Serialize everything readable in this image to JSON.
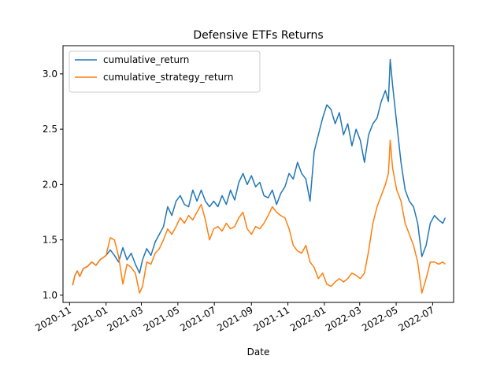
{
  "chart_data": {
    "type": "line",
    "title": "Defensive ETFs Returns",
    "xlabel": "Date",
    "ylabel": "",
    "x_range": [
      "2020-10-21",
      "2022-08-05"
    ],
    "ylim": [
      0.935,
      3.255
    ],
    "grid": false,
    "legend_position": "upper-left",
    "x_ticks": [
      {
        "date": "2020-11-01",
        "label": "2020-11"
      },
      {
        "date": "2021-01-01",
        "label": "2021-01"
      },
      {
        "date": "2021-03-01",
        "label": "2021-03"
      },
      {
        "date": "2021-05-01",
        "label": "2021-05"
      },
      {
        "date": "2021-07-01",
        "label": "2021-07"
      },
      {
        "date": "2021-09-01",
        "label": "2021-09"
      },
      {
        "date": "2021-11-01",
        "label": "2021-11"
      },
      {
        "date": "2022-01-01",
        "label": "2022-01"
      },
      {
        "date": "2022-03-01",
        "label": "2022-03"
      },
      {
        "date": "2022-05-01",
        "label": "2022-05"
      },
      {
        "date": "2022-07-01",
        "label": "2022-07"
      }
    ],
    "y_ticks": [
      {
        "value": 1.0,
        "label": "1.0"
      },
      {
        "value": 1.5,
        "label": "1.5"
      },
      {
        "value": 2.0,
        "label": "2.0"
      },
      {
        "value": 2.5,
        "label": "2.5"
      },
      {
        "value": 3.0,
        "label": "3.0"
      }
    ],
    "series": [
      {
        "name": "cumulative_return",
        "color": "#1f77b4",
        "points": [
          [
            "2020-11-06",
            1.09
          ],
          [
            "2020-11-10",
            1.18
          ],
          [
            "2020-11-14",
            1.22
          ],
          [
            "2020-11-18",
            1.17
          ],
          [
            "2020-11-24",
            1.24
          ],
          [
            "2020-12-01",
            1.26
          ],
          [
            "2020-12-08",
            1.3
          ],
          [
            "2020-12-15",
            1.27
          ],
          [
            "2020-12-22",
            1.32
          ],
          [
            "2021-01-01",
            1.36
          ],
          [
            "2021-01-08",
            1.41
          ],
          [
            "2021-01-15",
            1.36
          ],
          [
            "2021-01-22",
            1.3
          ],
          [
            "2021-01-29",
            1.43
          ],
          [
            "2021-02-05",
            1.32
          ],
          [
            "2021-02-12",
            1.38
          ],
          [
            "2021-02-19",
            1.28
          ],
          [
            "2021-02-26",
            1.2
          ],
          [
            "2021-03-03",
            1.32
          ],
          [
            "2021-03-10",
            1.42
          ],
          [
            "2021-03-17",
            1.36
          ],
          [
            "2021-03-24",
            1.48
          ],
          [
            "2021-03-31",
            1.55
          ],
          [
            "2021-04-07",
            1.62
          ],
          [
            "2021-04-14",
            1.8
          ],
          [
            "2021-04-21",
            1.72
          ],
          [
            "2021-04-28",
            1.85
          ],
          [
            "2021-05-05",
            1.9
          ],
          [
            "2021-05-12",
            1.82
          ],
          [
            "2021-05-19",
            1.8
          ],
          [
            "2021-05-26",
            1.95
          ],
          [
            "2021-06-02",
            1.85
          ],
          [
            "2021-06-09",
            1.95
          ],
          [
            "2021-06-16",
            1.85
          ],
          [
            "2021-06-23",
            1.8
          ],
          [
            "2021-06-30",
            1.85
          ],
          [
            "2021-07-07",
            1.8
          ],
          [
            "2021-07-14",
            1.9
          ],
          [
            "2021-07-21",
            1.82
          ],
          [
            "2021-07-28",
            1.95
          ],
          [
            "2021-08-04",
            1.86
          ],
          [
            "2021-08-11",
            2.02
          ],
          [
            "2021-08-18",
            2.1
          ],
          [
            "2021-08-25",
            2.0
          ],
          [
            "2021-09-01",
            2.08
          ],
          [
            "2021-09-08",
            1.98
          ],
          [
            "2021-09-15",
            2.02
          ],
          [
            "2021-09-22",
            1.9
          ],
          [
            "2021-09-29",
            1.88
          ],
          [
            "2021-10-06",
            1.95
          ],
          [
            "2021-10-13",
            1.82
          ],
          [
            "2021-10-20",
            1.92
          ],
          [
            "2021-10-27",
            1.98
          ],
          [
            "2021-11-03",
            2.1
          ],
          [
            "2021-11-10",
            2.05
          ],
          [
            "2021-11-17",
            2.2
          ],
          [
            "2021-11-24",
            2.1
          ],
          [
            "2021-12-01",
            2.05
          ],
          [
            "2021-12-08",
            1.85
          ],
          [
            "2021-12-15",
            2.3
          ],
          [
            "2021-12-22",
            2.45
          ],
          [
            "2021-12-29",
            2.6
          ],
          [
            "2022-01-05",
            2.72
          ],
          [
            "2022-01-12",
            2.68
          ],
          [
            "2022-01-19",
            2.55
          ],
          [
            "2022-01-26",
            2.65
          ],
          [
            "2022-02-02",
            2.45
          ],
          [
            "2022-02-09",
            2.55
          ],
          [
            "2022-02-16",
            2.35
          ],
          [
            "2022-02-23",
            2.5
          ],
          [
            "2022-03-02",
            2.4
          ],
          [
            "2022-03-09",
            2.2
          ],
          [
            "2022-03-16",
            2.45
          ],
          [
            "2022-03-23",
            2.55
          ],
          [
            "2022-03-30",
            2.6
          ],
          [
            "2022-04-06",
            2.75
          ],
          [
            "2022-04-13",
            2.85
          ],
          [
            "2022-04-18",
            2.75
          ],
          [
            "2022-04-21",
            3.13
          ],
          [
            "2022-04-25",
            2.9
          ],
          [
            "2022-05-02",
            2.55
          ],
          [
            "2022-05-09",
            2.2
          ],
          [
            "2022-05-16",
            1.95
          ],
          [
            "2022-05-23",
            1.85
          ],
          [
            "2022-05-30",
            1.8
          ],
          [
            "2022-06-06",
            1.65
          ],
          [
            "2022-06-13",
            1.35
          ],
          [
            "2022-06-20",
            1.45
          ],
          [
            "2022-06-27",
            1.65
          ],
          [
            "2022-07-04",
            1.72
          ],
          [
            "2022-07-11",
            1.68
          ],
          [
            "2022-07-18",
            1.65
          ],
          [
            "2022-07-22",
            1.7
          ]
        ]
      },
      {
        "name": "cumulative_strategy_return",
        "color": "#ff7f0e",
        "points": [
          [
            "2020-11-06",
            1.09
          ],
          [
            "2020-11-10",
            1.18
          ],
          [
            "2020-11-14",
            1.22
          ],
          [
            "2020-11-18",
            1.17
          ],
          [
            "2020-11-24",
            1.24
          ],
          [
            "2020-12-01",
            1.26
          ],
          [
            "2020-12-08",
            1.3
          ],
          [
            "2020-12-15",
            1.27
          ],
          [
            "2020-12-22",
            1.32
          ],
          [
            "2021-01-01",
            1.36
          ],
          [
            "2021-01-08",
            1.52
          ],
          [
            "2021-01-15",
            1.5
          ],
          [
            "2021-01-22",
            1.35
          ],
          [
            "2021-01-29",
            1.1
          ],
          [
            "2021-02-05",
            1.28
          ],
          [
            "2021-02-12",
            1.25
          ],
          [
            "2021-02-19",
            1.2
          ],
          [
            "2021-02-26",
            1.02
          ],
          [
            "2021-03-03",
            1.08
          ],
          [
            "2021-03-10",
            1.3
          ],
          [
            "2021-03-17",
            1.28
          ],
          [
            "2021-03-24",
            1.38
          ],
          [
            "2021-03-31",
            1.42
          ],
          [
            "2021-04-07",
            1.5
          ],
          [
            "2021-04-14",
            1.6
          ],
          [
            "2021-04-21",
            1.55
          ],
          [
            "2021-04-28",
            1.62
          ],
          [
            "2021-05-05",
            1.7
          ],
          [
            "2021-05-12",
            1.65
          ],
          [
            "2021-05-19",
            1.72
          ],
          [
            "2021-05-26",
            1.68
          ],
          [
            "2021-06-02",
            1.75
          ],
          [
            "2021-06-09",
            1.82
          ],
          [
            "2021-06-16",
            1.68
          ],
          [
            "2021-06-23",
            1.5
          ],
          [
            "2021-06-30",
            1.6
          ],
          [
            "2021-07-07",
            1.62
          ],
          [
            "2021-07-14",
            1.58
          ],
          [
            "2021-07-21",
            1.65
          ],
          [
            "2021-07-28",
            1.6
          ],
          [
            "2021-08-04",
            1.62
          ],
          [
            "2021-08-11",
            1.7
          ],
          [
            "2021-08-18",
            1.75
          ],
          [
            "2021-08-25",
            1.6
          ],
          [
            "2021-09-01",
            1.55
          ],
          [
            "2021-09-08",
            1.62
          ],
          [
            "2021-09-15",
            1.6
          ],
          [
            "2021-09-22",
            1.65
          ],
          [
            "2021-09-29",
            1.72
          ],
          [
            "2021-10-06",
            1.8
          ],
          [
            "2021-10-13",
            1.75
          ],
          [
            "2021-10-20",
            1.72
          ],
          [
            "2021-10-27",
            1.7
          ],
          [
            "2021-11-03",
            1.6
          ],
          [
            "2021-11-10",
            1.45
          ],
          [
            "2021-11-17",
            1.4
          ],
          [
            "2021-11-24",
            1.38
          ],
          [
            "2021-12-01",
            1.45
          ],
          [
            "2021-12-08",
            1.3
          ],
          [
            "2021-12-15",
            1.25
          ],
          [
            "2021-12-22",
            1.15
          ],
          [
            "2021-12-29",
            1.2
          ],
          [
            "2022-01-05",
            1.1
          ],
          [
            "2022-01-12",
            1.08
          ],
          [
            "2022-01-19",
            1.12
          ],
          [
            "2022-01-26",
            1.15
          ],
          [
            "2022-02-02",
            1.12
          ],
          [
            "2022-02-09",
            1.15
          ],
          [
            "2022-02-16",
            1.2
          ],
          [
            "2022-02-23",
            1.18
          ],
          [
            "2022-03-02",
            1.15
          ],
          [
            "2022-03-09",
            1.2
          ],
          [
            "2022-03-16",
            1.4
          ],
          [
            "2022-03-23",
            1.65
          ],
          [
            "2022-03-30",
            1.8
          ],
          [
            "2022-04-06",
            1.9
          ],
          [
            "2022-04-13",
            2.0
          ],
          [
            "2022-04-18",
            2.1
          ],
          [
            "2022-04-21",
            2.4
          ],
          [
            "2022-04-25",
            2.15
          ],
          [
            "2022-05-02",
            1.95
          ],
          [
            "2022-05-09",
            1.85
          ],
          [
            "2022-05-16",
            1.65
          ],
          [
            "2022-05-23",
            1.55
          ],
          [
            "2022-05-30",
            1.45
          ],
          [
            "2022-06-06",
            1.3
          ],
          [
            "2022-06-13",
            1.02
          ],
          [
            "2022-06-20",
            1.15
          ],
          [
            "2022-06-27",
            1.3
          ],
          [
            "2022-07-04",
            1.3
          ],
          [
            "2022-07-11",
            1.28
          ],
          [
            "2022-07-18",
            1.3
          ],
          [
            "2022-07-22",
            1.28
          ]
        ]
      }
    ]
  }
}
